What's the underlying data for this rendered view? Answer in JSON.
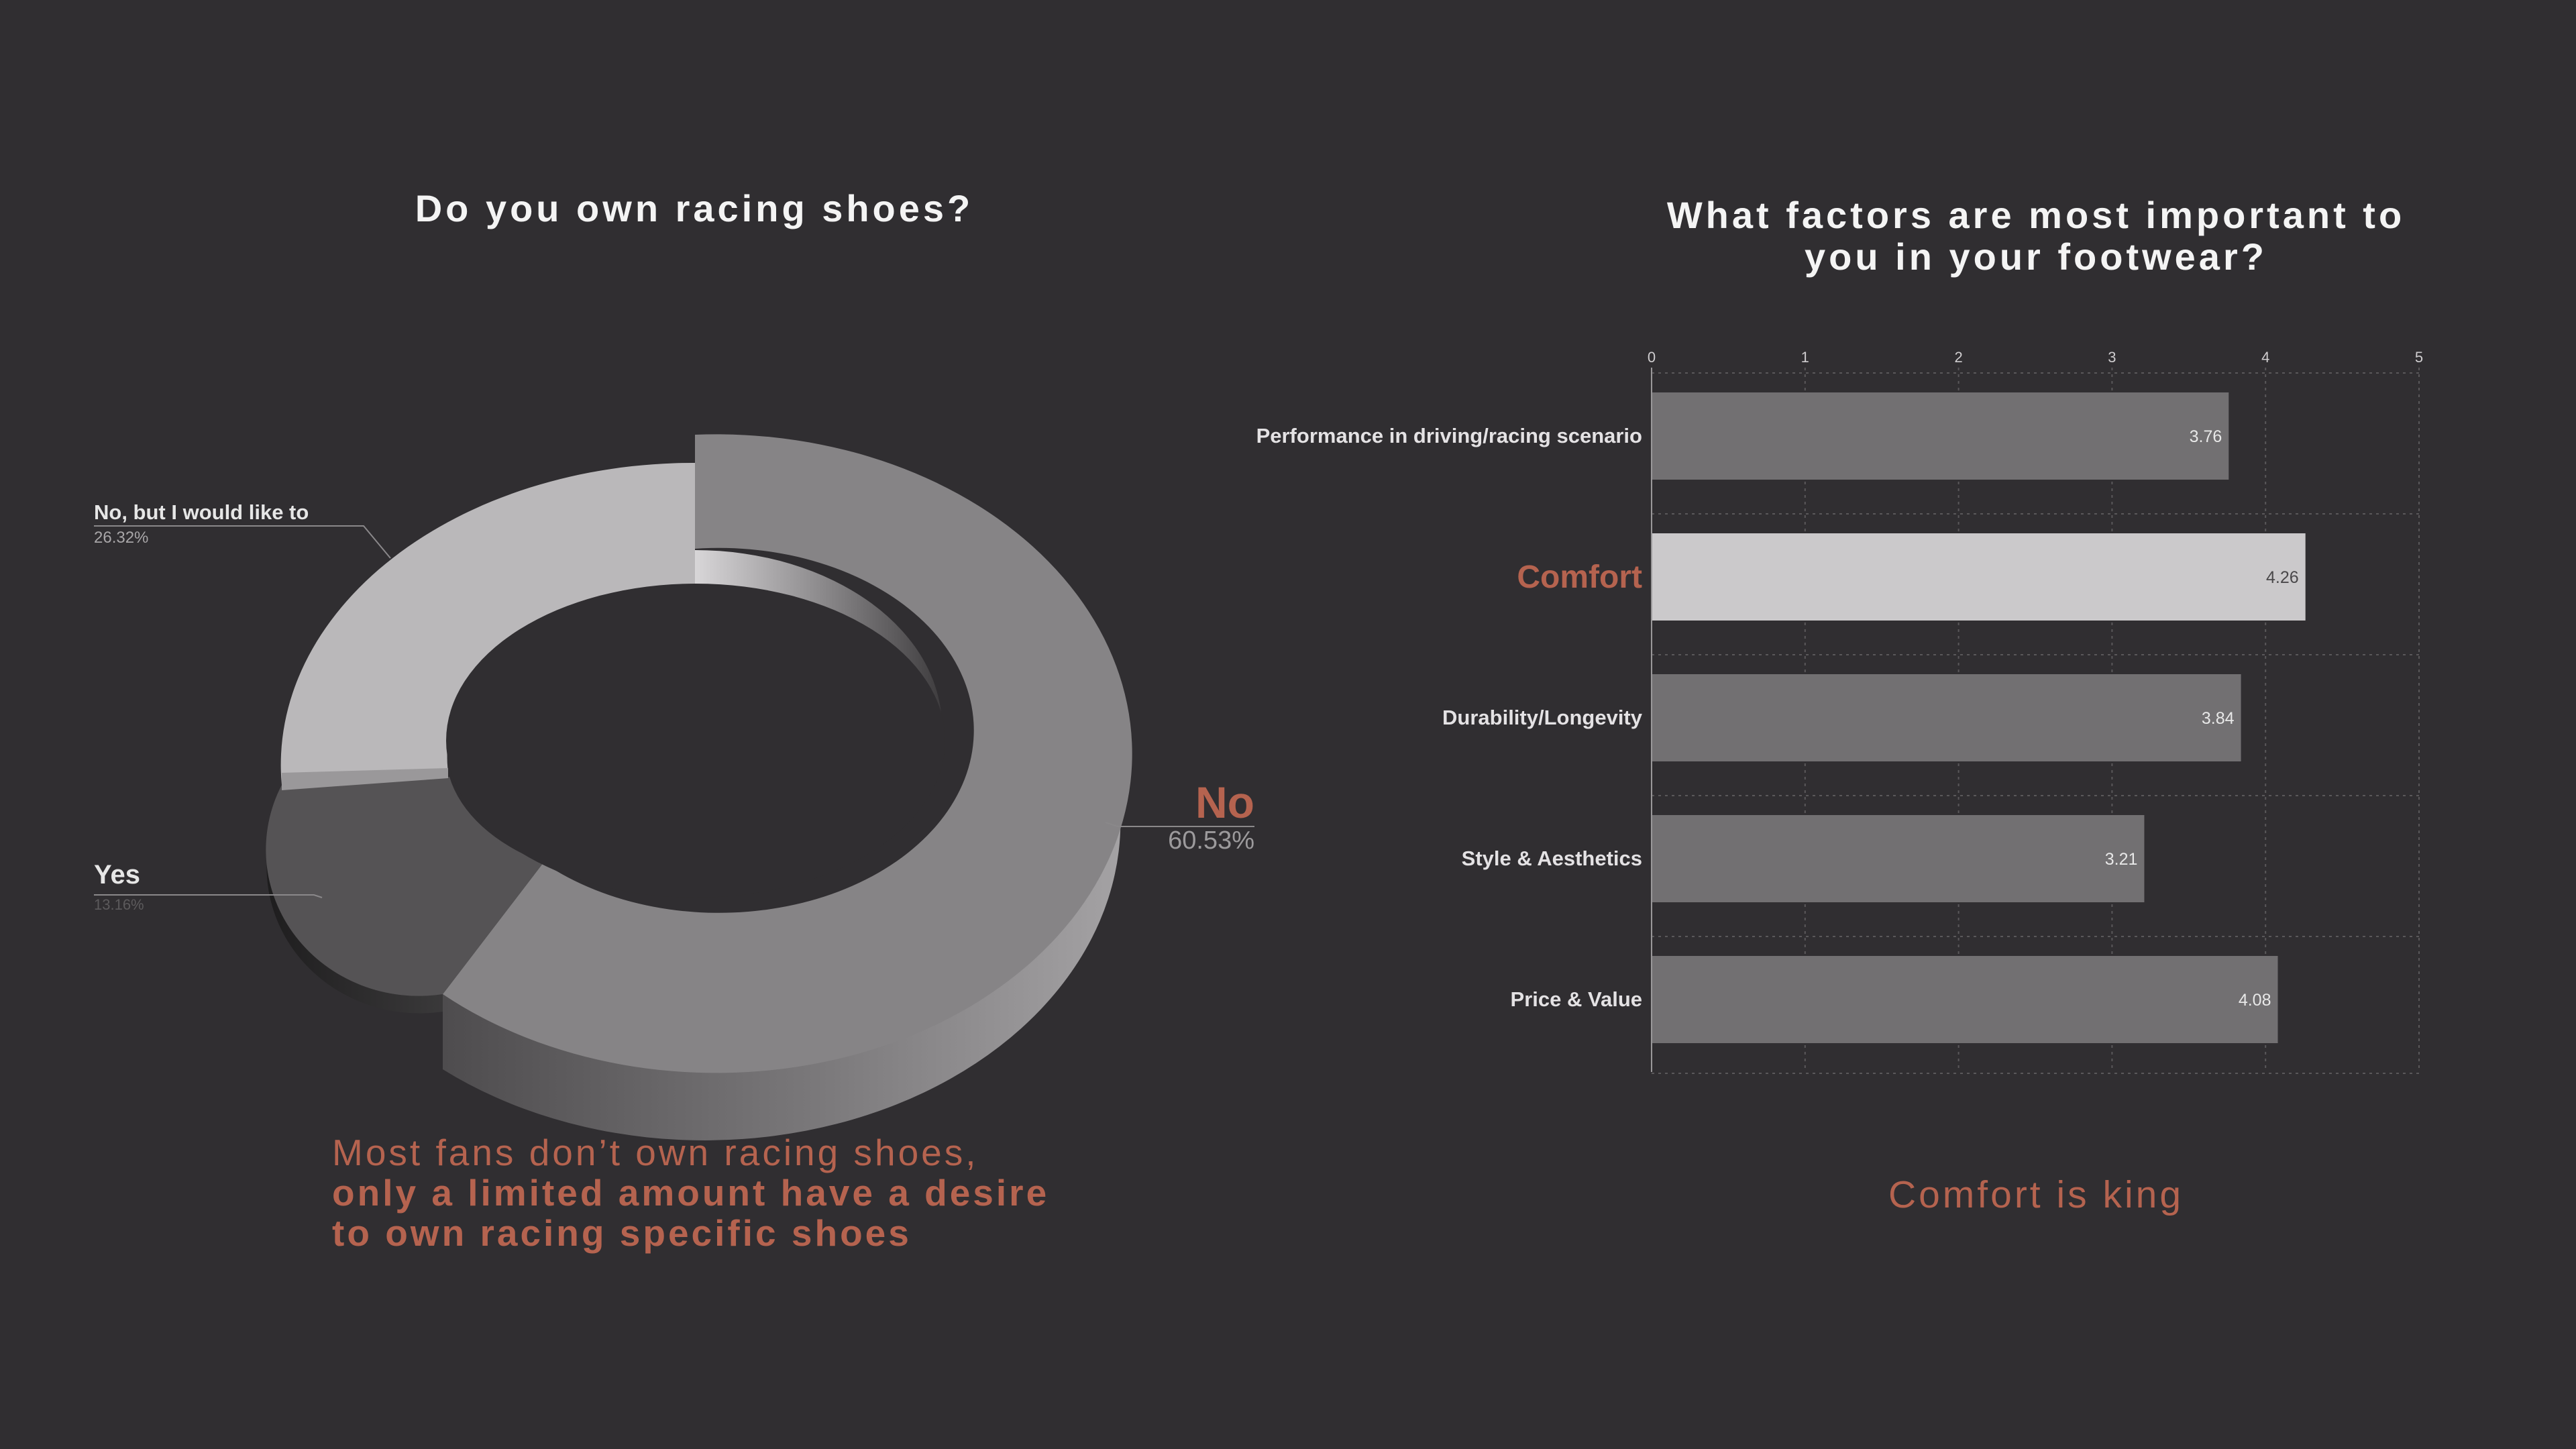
{
  "colors": {
    "background": "#302e31",
    "accent": "#b5634f",
    "bar": "#727072",
    "bar_highlight": "#cbc9cb",
    "pie_no": "#868486",
    "pie_like": "#bab8ba",
    "pie_yes": "#555355"
  },
  "left": {
    "title": "Do you own racing shoes?",
    "caption_line1": "Most fans don’t own racing shoes,",
    "caption_line2": "only a limited amount have a desire",
    "caption_line3": "to own racing specific shoes"
  },
  "right": {
    "title_line1": "What factors are most important to",
    "title_line2": "you in your footwear?",
    "caption": "Comfort is king"
  },
  "chart_data": [
    {
      "type": "pie",
      "title": "Do you own racing shoes?",
      "slices": [
        {
          "label": "No",
          "value": 60.53,
          "value_label": "60.53%"
        },
        {
          "label": "Yes",
          "value": 13.16,
          "value_label": "13.16%"
        },
        {
          "label": "No, but I would like to",
          "value": 26.32,
          "value_label": "26.32%"
        }
      ]
    },
    {
      "type": "bar",
      "orientation": "horizontal",
      "title": "What factors are most important to you in your footwear?",
      "categories": [
        "Performance in driving/racing scenario",
        "Comfort",
        "Durability/Longevity",
        "Style & Aesthetics",
        "Price & Value"
      ],
      "values": [
        3.76,
        4.26,
        3.84,
        3.21,
        4.08
      ],
      "value_labels": [
        "3.76",
        "4.26",
        "3.84",
        "3.21",
        "4.08"
      ],
      "highlight": "Comfort",
      "xlim": [
        0,
        5
      ],
      "ticks": [
        "0",
        "1",
        "2",
        "3",
        "4",
        "5"
      ],
      "grid": true
    }
  ]
}
